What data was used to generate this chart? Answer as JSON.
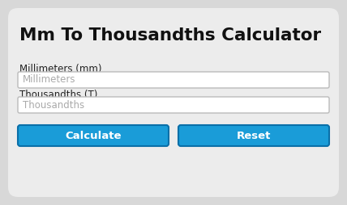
{
  "bg_color": "#d8d8d8",
  "card_color": "#ececec",
  "title": "Mm To Thousandths Calculator",
  "title_fontsize": 15.5,
  "title_fontweight": "bold",
  "title_color": "#111111",
  "label1": "Millimeters (mm)",
  "label2": "Thousandths (T)",
  "placeholder1": "Millimeters",
  "placeholder2": "Thousandths",
  "label_fontsize": 8.5,
  "label_color": "#222222",
  "placeholder_fontsize": 8.5,
  "placeholder_color": "#aaaaaa",
  "input_bg": "#ffffff",
  "input_border": "#bbbbbb",
  "btn1_label": "Calculate",
  "btn2_label": "Reset",
  "btn_color": "#1a9cd8",
  "btn_border": "#0a6fa8",
  "btn_text_color": "#ffffff",
  "btn_fontsize": 9.5,
  "figsize": [
    4.28,
    2.54
  ],
  "dpi": 100
}
